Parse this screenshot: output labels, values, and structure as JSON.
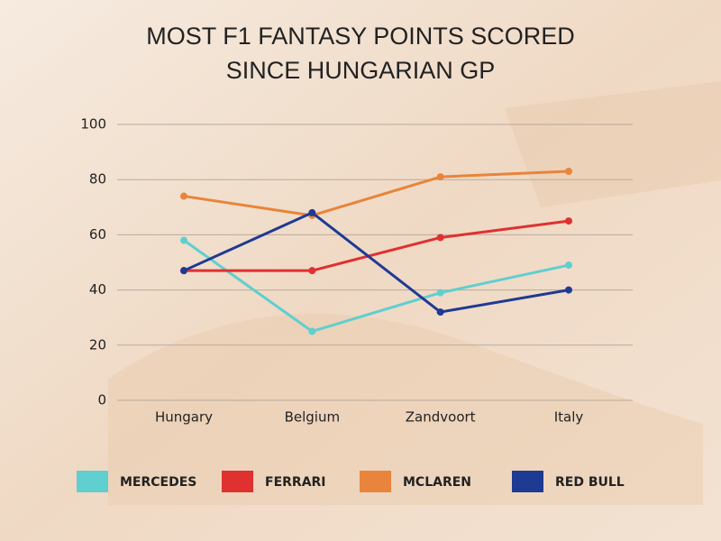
{
  "chart_data": {
    "type": "line",
    "title": [
      "MOST F1 FANTASY POINTS SCORED",
      "SINCE HUNGARIAN GP"
    ],
    "categories": [
      "Hungary",
      "Belgium",
      "Zandvoort",
      "Italy"
    ],
    "series": [
      {
        "name": "MERCEDES",
        "color": "#5fcfcf",
        "values": [
          58,
          25,
          39,
          49
        ]
      },
      {
        "name": "FERRARI",
        "color": "#e03030",
        "values": [
          47,
          47,
          59,
          65
        ]
      },
      {
        "name": "MCLAREN",
        "color": "#e8843c",
        "values": [
          74,
          67,
          81,
          83
        ]
      },
      {
        "name": "RED BULL",
        "color": "#1f3a93",
        "values": [
          47,
          68,
          32,
          40
        ]
      }
    ],
    "ylim": [
      0,
      100
    ],
    "yticks": [
      0,
      20,
      40,
      60,
      80,
      100
    ],
    "grid": true,
    "legend": "bottom"
  }
}
